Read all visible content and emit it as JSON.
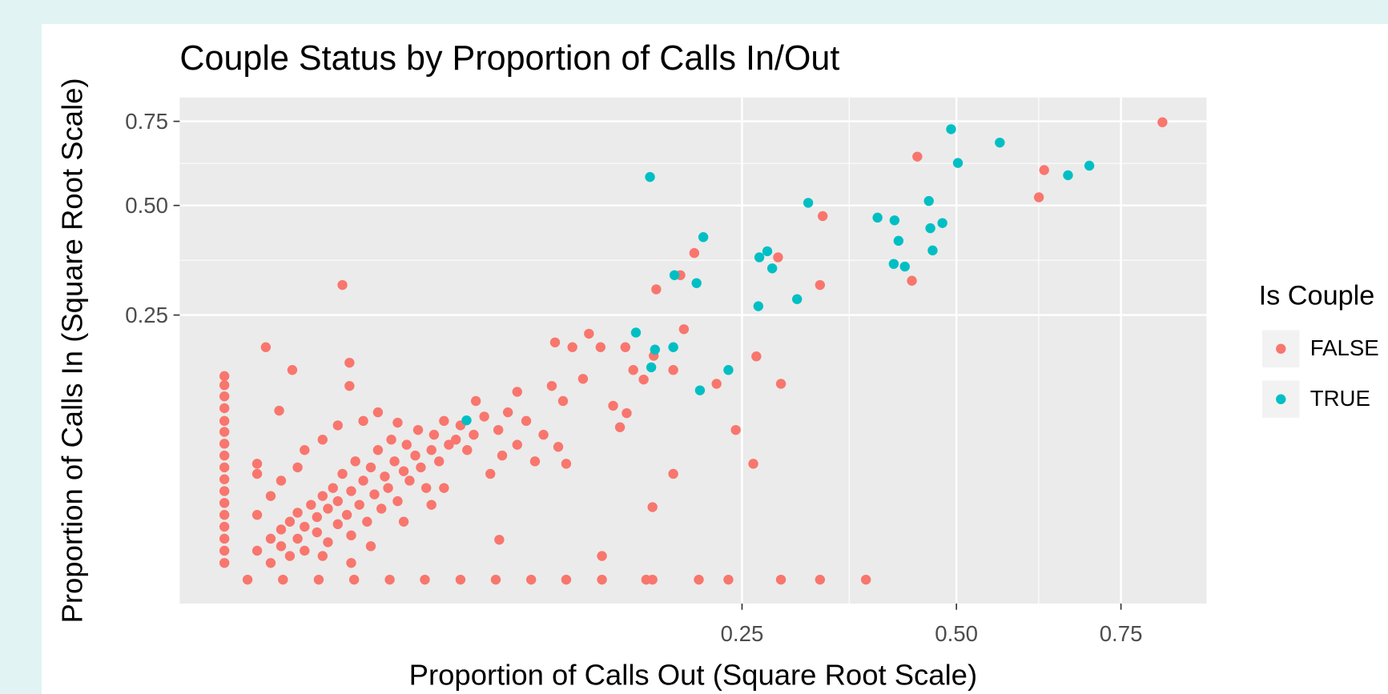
{
  "chart_data": {
    "type": "scatter",
    "title": "Couple Status by Proportion of Calls In/Out",
    "x_label": "Proportion of Calls Out (Square Root Scale)",
    "y_label": "Proportion of Calls In (Square Root Scale)",
    "legend_title": "Is Couple",
    "legend_position": "right",
    "xscale": "sqrt",
    "yscale": "sqrt",
    "grid": true,
    "xlim": [
      0,
      0.9
    ],
    "ylim": [
      0,
      0.83
    ],
    "xticks": [
      0.25,
      {
        "value": 0.5,
        "label": "0.50"
      },
      0.75
    ],
    "yticks": [
      0.25,
      {
        "value": 0.5,
        "label": "0.50"
      },
      0.75
    ],
    "series": [
      {
        "name": "FALSE",
        "color": "#F8766D",
        "x": [
          0,
          0,
          0,
          0,
          0,
          0,
          0,
          0,
          0,
          0,
          0,
          0,
          0,
          0,
          0,
          0,
          0,
          0.0005,
          0.0032,
          0.0083,
          0.0157,
          0.0255,
          0.0375,
          0.052,
          0.0687,
          0.0878,
          0.109,
          0.133,
          0.166,
          0.171,
          0.21,
          0.237,
          0.289,
          0.331,
          0.384,
          0.821,
          0.448,
          0.627,
          0.619,
          0.334,
          0.206,
          0.194,
          0.174,
          0.286,
          0.331,
          0.441,
          0.102,
          0.113,
          0.124,
          0.132,
          0.15,
          0.197,
          0.264,
          0.156,
          0.164,
          0.172,
          0.188,
          0.226,
          0.289,
          0.08,
          0.059,
          0.1,
          0.107,
          0.12,
          0.141,
          0.151,
          0.146,
          0.244,
          0.261,
          0.188,
          0.171,
          0.133,
          0.013,
          0.0016,
          0.0043,
          0.0146,
          0.0146,
          0.0028,
          0.001,
          0.0705,
          0.109,
          0.104,
          0.001,
          0.002,
          0.002,
          0.003,
          0.003,
          0.004,
          0.004,
          0.005,
          0.005,
          0.006,
          0.006,
          0.007,
          0.008,
          0.008,
          0.009,
          0.01,
          0.01,
          0.011,
          0.012,
          0.012,
          0.013,
          0.014,
          0.015,
          0.015,
          0.016,
          0.017,
          0.018,
          0.019,
          0.02,
          0.021,
          0.022,
          0.023,
          0.024,
          0.025,
          0.026,
          0.027,
          0.028,
          0.03,
          0.031,
          0.032,
          0.034,
          0.035,
          0.036,
          0.038,
          0.04,
          0.041,
          0.043,
          0.045,
          0.047,
          0.05,
          0.052,
          0.055,
          0.058,
          0.001,
          0.002,
          0.003,
          0.005,
          0.001,
          0.006,
          0.009,
          0.012,
          0.018,
          0.022,
          0.028,
          0.063,
          0.07,
          0.075,
          0.08,
          0.085,
          0.09,
          0.066,
          0.072,
          0.095,
          0.04,
          0.045,
          0.03,
          0.02,
          0.015,
          0.009
        ],
        "y": [
          0.148,
          0.135,
          0.12,
          0.105,
          0.09,
          0.078,
          0.066,
          0.055,
          0.045,
          0.036,
          0.028,
          0.021,
          0.015,
          0.01,
          0.006,
          0.003,
          0.001,
          0,
          0,
          0,
          0,
          0,
          0,
          0,
          0,
          0,
          0,
          0,
          0,
          0,
          0,
          0,
          0,
          0,
          0,
          0.747,
          0.639,
          0.599,
          0.522,
          0.472,
          0.381,
          0.331,
          0.301,
          0.371,
          0.31,
          0.319,
          0.201,
          0.193,
          0.216,
          0.193,
          0.193,
          0.224,
          0.178,
          0.157,
          0.143,
          0.179,
          0.157,
          0.137,
          0.137,
          0.126,
          0.114,
          0.134,
          0.114,
          0.144,
          0.108,
          0.099,
          0.083,
          0.08,
          0.048,
          0.04,
          0.0188,
          0.002,
          0.31,
          0.193,
          0.157,
          0.168,
          0.134,
          0.102,
          0.048,
          0.0057,
          0.048,
          0.063,
          0.003,
          0.001,
          0.006,
          0.004,
          0.009,
          0.002,
          0.012,
          0.006,
          0.016,
          0.01,
          0.003,
          0.02,
          0.008,
          0.014,
          0.025,
          0.005,
          0.018,
          0.03,
          0.011,
          0.022,
          0.04,
          0.015,
          0.028,
          0.007,
          0.05,
          0.02,
          0.035,
          0.012,
          0.045,
          0.026,
          0.06,
          0.018,
          0.038,
          0.03,
          0.07,
          0.05,
          0.022,
          0.042,
          0.065,
          0.035,
          0.055,
          0.08,
          0.045,
          0.03,
          0.06,
          0.075,
          0.05,
          0.09,
          0.065,
          0.07,
          0.085,
          0.06,
          0.075,
          0.015,
          0.025,
          0.035,
          0.045,
          0.04,
          0.06,
          0.07,
          0.085,
          0.09,
          0.1,
          0.088,
          0.095,
          0.08,
          0.1,
          0.065,
          0.09,
          0.05,
          0.04,
          0.055,
          0.075,
          0.02,
          0.03,
          0.012,
          0.004,
          0.001,
          0.002
        ]
      },
      {
        "name": "TRUE",
        "color": "#00BFC4",
        "x": [
          0.4927,
          0.561,
          0.502,
          0.664,
          0.698,
          0.169,
          0.318,
          0.463,
          0.398,
          0.419,
          0.424,
          0.481,
          0.465,
          0.214,
          0.275,
          0.267,
          0.28,
          0.418,
          0.432,
          0.468,
          0.189,
          0.208,
          0.306,
          0.266,
          0.158,
          0.173,
          0.188,
          0.17,
          0.237,
          0.211,
          0.0547
        ],
        "y": [
          0.7245,
          0.682,
          0.62,
          0.584,
          0.612,
          0.579,
          0.507,
          0.512,
          0.468,
          0.461,
          0.41,
          0.454,
          0.441,
          0.419,
          0.385,
          0.371,
          0.346,
          0.356,
          0.35,
          0.387,
          0.331,
          0.314,
          0.281,
          0.267,
          0.218,
          0.189,
          0.193,
          0.161,
          0.157,
          0.128,
          0.0906
        ]
      }
    ]
  }
}
